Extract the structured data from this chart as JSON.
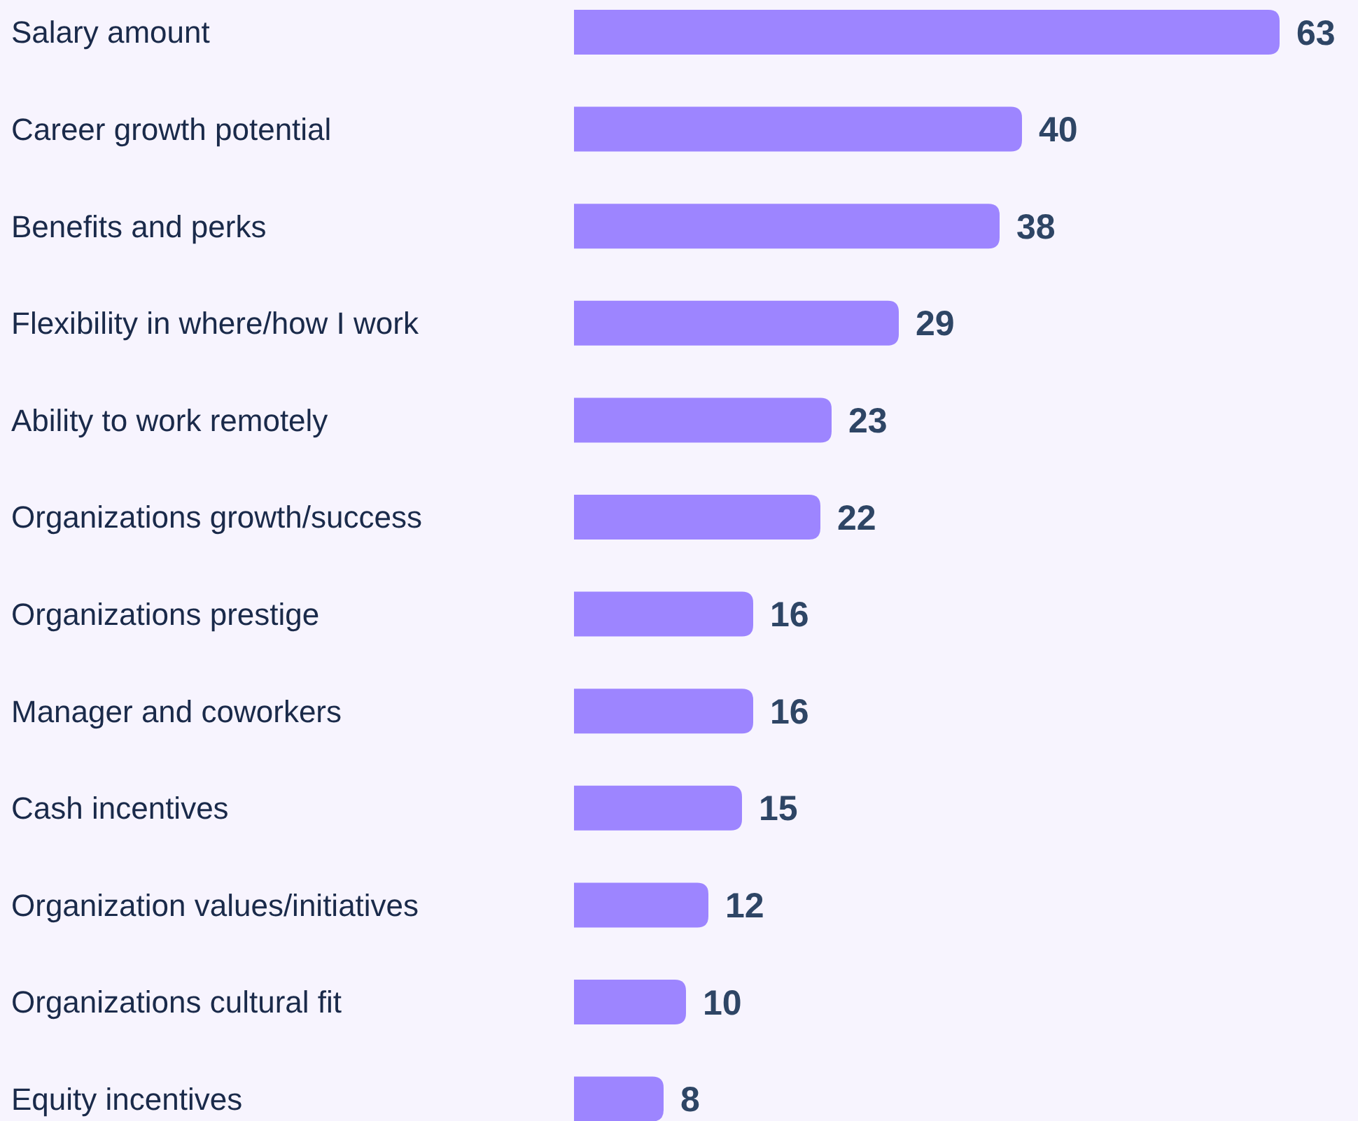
{
  "chart_data": {
    "type": "bar",
    "orientation": "horizontal",
    "categories": [
      "Salary amount",
      "Career growth potential",
      "Benefits and perks",
      "Flexibility in where/how I work",
      "Ability to work remotely",
      "Organizations growth/success",
      "Organizations prestige",
      "Manager and coworkers",
      "Cash incentives",
      "Organization values/initiatives",
      "Organizations cultural fit",
      "Equity incentives"
    ],
    "values": [
      63,
      40,
      38,
      29,
      23,
      22,
      16,
      16,
      15,
      12,
      10,
      8
    ],
    "color": "#9d85ff",
    "data_labels": true
  }
}
